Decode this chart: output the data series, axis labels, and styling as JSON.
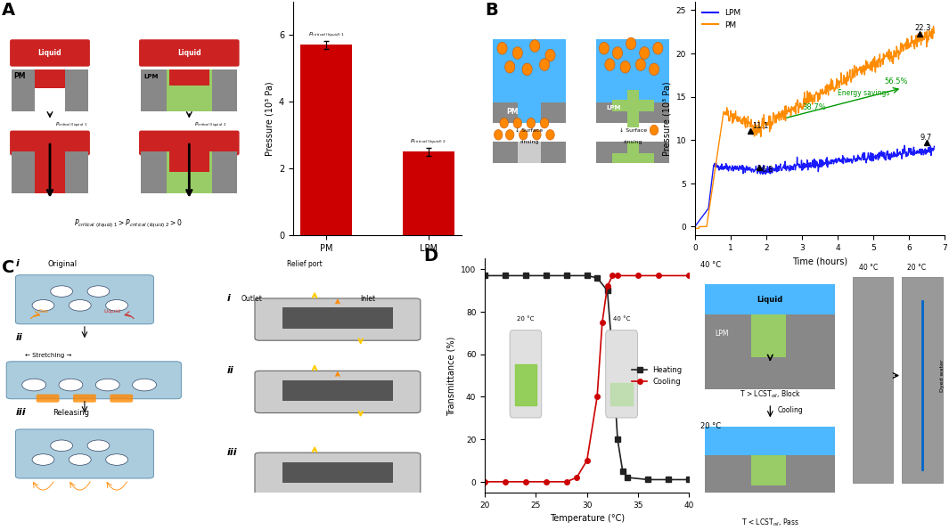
{
  "panel_A_bar": {
    "categories": [
      "PM",
      "LPM"
    ],
    "values": [
      5.7,
      2.5
    ],
    "bar_color": "#cc0000",
    "ylabel": "Pressure (10³ Pa)",
    "ylim": [
      0,
      7
    ],
    "yticks": [
      0,
      2,
      4,
      6
    ],
    "labels": [
      "P_critical (liquid) 1",
      "P_critical (liquid) 2"
    ]
  },
  "panel_B_line": {
    "lpm_color": "#1a1aff",
    "pm_color": "#ff8c00",
    "legend": [
      "LPM",
      "PM"
    ],
    "xlabel": "Time (hours)",
    "ylabel": "Pressure (10³ Pa)",
    "xlim": [
      0,
      7
    ],
    "ylim": [
      -1,
      26
    ],
    "yticks": [
      0,
      5,
      10,
      15,
      20,
      25
    ],
    "xticks": [
      0,
      1,
      2,
      3,
      4,
      5,
      6,
      7
    ]
  },
  "panel_D_line": {
    "xlabel": "Temperature (°C)",
    "ylabel": "Transmittance (%)",
    "xlim": [
      20,
      40
    ],
    "ylim": [
      -5,
      105
    ],
    "xticks": [
      20,
      25,
      30,
      35,
      40
    ],
    "yticks": [
      0,
      20,
      40,
      60,
      80,
      100
    ],
    "heating_color": "#222222",
    "cooling_color": "#cc0000",
    "heating_x": [
      20,
      22,
      24,
      26,
      28,
      30,
      31,
      32,
      32.5,
      33,
      33.5,
      34,
      36,
      38,
      40
    ],
    "heating_y": [
      97,
      97,
      97,
      97,
      97,
      97,
      96,
      90,
      60,
      20,
      5,
      2,
      1,
      1,
      1
    ],
    "cooling_x": [
      20,
      22,
      24,
      26,
      28,
      29,
      30,
      31,
      31.5,
      32,
      32.5,
      33,
      35,
      37,
      40
    ],
    "cooling_y": [
      0,
      0,
      0,
      0,
      0,
      2,
      10,
      40,
      75,
      92,
      97,
      97,
      97,
      97,
      97
    ]
  },
  "colors": {
    "background": "#ffffff",
    "diagram_liquid": "#4db8ff",
    "diagram_red": "#cc2222",
    "diagram_gray": "#888888",
    "diagram_green": "#99cc66",
    "diagram_orange": "#ff8800",
    "diagram_blue": "#5588cc",
    "diagram_light_blue": "#aaccee"
  }
}
